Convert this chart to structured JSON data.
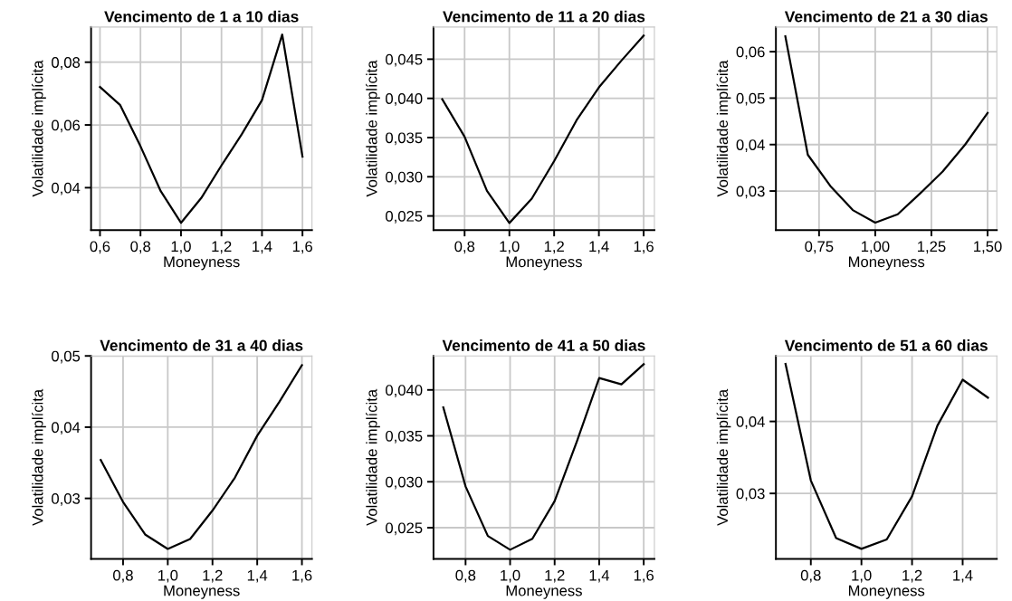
{
  "chart_data": [
    {
      "type": "line",
      "title": "Vencimento de 1 a 10 dias",
      "xlabel": "Moneyness",
      "ylabel": "Volatilidade implícita",
      "grid": true,
      "color": "#000000",
      "x": [
        0.6,
        0.7,
        0.8,
        0.9,
        1.0,
        1.1,
        1.2,
        1.3,
        1.4,
        1.5,
        1.6
      ],
      "values": [
        0.0721,
        0.0663,
        0.0532,
        0.0389,
        0.0288,
        0.0367,
        0.0471,
        0.057,
        0.0679,
        0.0888,
        0.0499
      ],
      "xlim": [
        0.556,
        1.647
      ],
      "ylim": [
        0.0265,
        0.0912
      ],
      "xticks": [
        {
          "value": 0.6,
          "label": "0,6"
        },
        {
          "value": 0.8,
          "label": "0,8"
        },
        {
          "value": 1.0,
          "label": "1,0"
        },
        {
          "value": 1.2,
          "label": "1,2"
        },
        {
          "value": 1.4,
          "label": "1,4"
        },
        {
          "value": 1.6,
          "label": "1,6"
        }
      ],
      "yticks": [
        {
          "value": 0.04,
          "label": "0,04"
        },
        {
          "value": 0.06,
          "label": "0,06"
        },
        {
          "value": 0.08,
          "label": "0,08"
        }
      ]
    },
    {
      "type": "line",
      "title": "Vencimento de 11 a 20 dias",
      "xlabel": "Moneyness",
      "ylabel": "Volatilidade implícita",
      "grid": true,
      "color": "#000000",
      "x": [
        0.7,
        0.8,
        0.9,
        1.0,
        1.1,
        1.2,
        1.3,
        1.4,
        1.5,
        1.6
      ],
      "values": [
        0.0399,
        0.0351,
        0.0282,
        0.0241,
        0.0272,
        0.032,
        0.0372,
        0.0414,
        0.0448,
        0.048
      ],
      "xlim": [
        0.661,
        1.648
      ],
      "ylim": [
        0.0232,
        0.0491
      ],
      "xticks": [
        {
          "value": 0.8,
          "label": "0,8"
        },
        {
          "value": 1.0,
          "label": "1,0"
        },
        {
          "value": 1.2,
          "label": "1,2"
        },
        {
          "value": 1.4,
          "label": "1,4"
        },
        {
          "value": 1.6,
          "label": "1,6"
        }
      ],
      "yticks": [
        {
          "value": 0.025,
          "label": "0,025"
        },
        {
          "value": 0.03,
          "label": "0,030"
        },
        {
          "value": 0.035,
          "label": "0,035"
        },
        {
          "value": 0.04,
          "label": "0,040"
        },
        {
          "value": 0.045,
          "label": "0,045"
        }
      ]
    },
    {
      "type": "line",
      "title": "Vencimento de 21 a 30 dias",
      "xlabel": "Moneyness",
      "ylabel": "Volatilidade implícita",
      "grid": true,
      "color": "#000000",
      "x": [
        0.6,
        0.7,
        0.8,
        0.9,
        1.0,
        1.1,
        1.2,
        1.3,
        1.4,
        1.5
      ],
      "values": [
        0.0633,
        0.0378,
        0.0311,
        0.0259,
        0.0232,
        0.025,
        0.0295,
        0.0342,
        0.04,
        0.0468
      ],
      "xlim": [
        0.558,
        1.541
      ],
      "ylim": [
        0.0216,
        0.0653
      ],
      "xticks": [
        {
          "value": 0.75,
          "label": "0,75"
        },
        {
          "value": 1.0,
          "label": "1,00"
        },
        {
          "value": 1.25,
          "label": "1,25"
        },
        {
          "value": 1.5,
          "label": "1,50"
        }
      ],
      "yticks": [
        {
          "value": 0.03,
          "label": "0,03"
        },
        {
          "value": 0.04,
          "label": "0,04"
        },
        {
          "value": 0.05,
          "label": "0,05"
        },
        {
          "value": 0.06,
          "label": "0,06"
        }
      ]
    },
    {
      "type": "line",
      "title": "Vencimento de 31 a 40 dias",
      "xlabel": "Moneyness",
      "ylabel": "Volatilidade implícita",
      "grid": true,
      "color": "#000000",
      "x": [
        0.7,
        0.8,
        0.9,
        1.0,
        1.1,
        1.2,
        1.3,
        1.4,
        1.5,
        1.6
      ],
      "values": [
        0.0354,
        0.0295,
        0.0249,
        0.0229,
        0.0243,
        0.0283,
        0.0329,
        0.0388,
        0.0436,
        0.0487
      ],
      "xlim": [
        0.657,
        1.645
      ],
      "ylim": [
        0.0215,
        0.05
      ],
      "xticks": [
        {
          "value": 0.8,
          "label": "0,8"
        },
        {
          "value": 1.0,
          "label": "1,0"
        },
        {
          "value": 1.2,
          "label": "1,2"
        },
        {
          "value": 1.4,
          "label": "1,4"
        },
        {
          "value": 1.6,
          "label": "1,6"
        }
      ],
      "yticks": [
        {
          "value": 0.03,
          "label": "0,03"
        },
        {
          "value": 0.04,
          "label": "0,04"
        },
        {
          "value": 0.05,
          "label": "0,05"
        }
      ]
    },
    {
      "type": "line",
      "title": "Vencimento de 41 a 50 dias",
      "xlabel": "Moneyness",
      "ylabel": "Volatilidade implícita",
      "grid": true,
      "color": "#000000",
      "x": [
        0.7,
        0.8,
        0.9,
        1.0,
        1.1,
        1.2,
        1.3,
        1.4,
        1.5,
        1.6
      ],
      "values": [
        0.0381,
        0.0295,
        0.0241,
        0.0226,
        0.0238,
        0.0279,
        0.0344,
        0.0413,
        0.0406,
        0.0428
      ],
      "xlim": [
        0.656,
        1.648
      ],
      "ylim": [
        0.0216,
        0.0437
      ],
      "xticks": [
        {
          "value": 0.8,
          "label": "0,8"
        },
        {
          "value": 1.0,
          "label": "1,0"
        },
        {
          "value": 1.2,
          "label": "1,2"
        },
        {
          "value": 1.4,
          "label": "1,4"
        },
        {
          "value": 1.6,
          "label": "1,6"
        }
      ],
      "yticks": [
        {
          "value": 0.025,
          "label": "0,025"
        },
        {
          "value": 0.03,
          "label": "0,030"
        },
        {
          "value": 0.035,
          "label": "0,035"
        },
        {
          "value": 0.04,
          "label": "0,040"
        }
      ]
    },
    {
      "type": "line",
      "title": "Vencimento de 51 a 60 dias",
      "xlabel": "Moneyness",
      "ylabel": "Volatilidade implícita",
      "grid": true,
      "color": "#000000",
      "x": [
        0.7,
        0.8,
        0.9,
        1.0,
        1.1,
        1.2,
        1.3,
        1.4,
        1.5
      ],
      "values": [
        0.048,
        0.0318,
        0.0238,
        0.0223,
        0.0236,
        0.0296,
        0.0394,
        0.0458,
        0.0433
      ],
      "xlim": [
        0.662,
        1.535
      ],
      "ylim": [
        0.0209,
        0.0491
      ],
      "xticks": [
        {
          "value": 0.8,
          "label": "0,8"
        },
        {
          "value": 1.0,
          "label": "1,0"
        },
        {
          "value": 1.2,
          "label": "1,2"
        },
        {
          "value": 1.4,
          "label": "1,4"
        }
      ],
      "yticks": [
        {
          "value": 0.03,
          "label": "0,03"
        },
        {
          "value": 0.04,
          "label": "0,04"
        }
      ]
    }
  ]
}
